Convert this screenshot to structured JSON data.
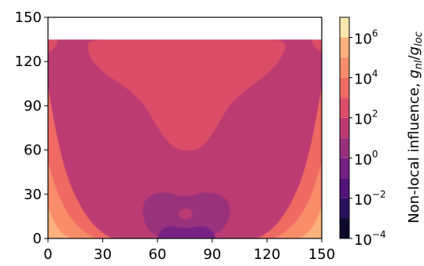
{
  "chart_data": {
    "type": "heatmap",
    "title": "",
    "xlabel": "",
    "ylabel": "",
    "xlim": [
      0,
      150
    ],
    "ylim": [
      0,
      150
    ],
    "x_ticks": [
      0,
      30,
      60,
      90,
      120,
      150
    ],
    "y_ticks": [
      0,
      30,
      60,
      90,
      120,
      150
    ],
    "data_extent_y_max": 135,
    "grid": false,
    "colorbar": {
      "label_parts": [
        "Non-local influence, ",
        "g",
        "nl",
        "/",
        "g",
        "loc"
      ],
      "scale": "log",
      "range": [
        0.0001,
        10000000
      ],
      "ticks": [
        {
          "base": "10",
          "exp": "6",
          "value": 1000000
        },
        {
          "base": "10",
          "exp": "4",
          "value": 10000
        },
        {
          "base": "10",
          "exp": "2",
          "value": 100
        },
        {
          "base": "10",
          "exp": "0",
          "value": 1
        },
        {
          "base": "10",
          "exp": "−2",
          "value": 0.01
        },
        {
          "base": "10",
          "exp": "−4",
          "value": 0.0001
        }
      ],
      "levels": [
        {
          "min_log10": -4,
          "max_log10": -3,
          "color": "#0e0a2c"
        },
        {
          "min_log10": -3,
          "max_log10": -2,
          "color": "#2b115c"
        },
        {
          "min_log10": -2,
          "max_log10": -1,
          "color": "#52147a"
        },
        {
          "min_log10": -1,
          "max_log10": 0,
          "color": "#762084"
        },
        {
          "min_log10": 0,
          "max_log10": 1,
          "color": "#98307d"
        },
        {
          "min_log10": 1,
          "max_log10": 2,
          "color": "#bb3a72"
        },
        {
          "min_log10": 2,
          "max_log10": 3,
          "color": "#dc4d68"
        },
        {
          "min_log10": 3,
          "max_log10": 4,
          "color": "#ee6b63"
        },
        {
          "min_log10": 4,
          "max_log10": 5,
          "color": "#f98d6b"
        },
        {
          "min_log10": 5,
          "max_log10": 6,
          "color": "#fdb27e"
        },
        {
          "min_log10": 6,
          "max_log10": 7,
          "color": "#fbe8b0"
        }
      ]
    },
    "regions": [
      {
        "level_log10": 1,
        "note": "main body"
      },
      {
        "level_log10": 2,
        "note": "upper-central lobe"
      },
      {
        "level_log10": 3,
        "note": "left and right side bands"
      },
      {
        "level_log10": 4,
        "note": "lower corners"
      },
      {
        "level_log10": 5,
        "note": "bottom corners"
      },
      {
        "level_log10": 0,
        "note": "bottom-central blob"
      },
      {
        "level_log10": 1,
        "note": "small spot inside central blob"
      },
      {
        "level_log10": -1,
        "note": "bottom-central low region"
      }
    ]
  }
}
